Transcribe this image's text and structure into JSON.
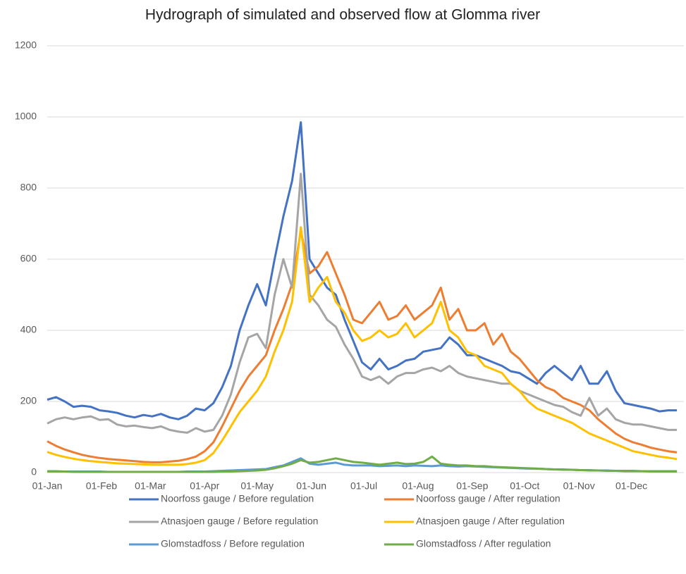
{
  "chart_data": {
    "type": "line",
    "title": "Hydrograph of simulated and observed flow at Glomma river",
    "x": [
      0,
      5,
      10,
      15,
      20,
      25,
      30,
      35,
      40,
      45,
      50,
      55,
      60,
      65,
      70,
      75,
      80,
      85,
      90,
      95,
      100,
      105,
      110,
      115,
      120,
      125,
      130,
      135,
      140,
      145,
      150,
      155,
      160,
      165,
      170,
      175,
      180,
      185,
      190,
      195,
      200,
      205,
      210,
      215,
      220,
      225,
      230,
      235,
      240,
      245,
      250,
      255,
      260,
      265,
      270,
      275,
      280,
      285,
      290,
      295,
      300,
      305,
      310,
      315,
      320,
      325,
      330,
      335,
      340,
      345,
      350,
      355,
      360
    ],
    "xlim": [
      0,
      364
    ],
    "xticks": [
      {
        "value": 0,
        "label": "01-Jan"
      },
      {
        "value": 31,
        "label": "01-Feb"
      },
      {
        "value": 59,
        "label": "01-Mar"
      },
      {
        "value": 90,
        "label": "01-Apr"
      },
      {
        "value": 120,
        "label": "01-May"
      },
      {
        "value": 151,
        "label": "01-Jun"
      },
      {
        "value": 181,
        "label": "01-Jul"
      },
      {
        "value": 212,
        "label": "01-Aug"
      },
      {
        "value": 243,
        "label": "01-Sep"
      },
      {
        "value": 273,
        "label": "01-Oct"
      },
      {
        "value": 304,
        "label": "01-Nov"
      },
      {
        "value": 334,
        "label": "01-Dec"
      }
    ],
    "ylim": [
      0,
      1200
    ],
    "yticks": [
      0,
      200,
      400,
      600,
      800,
      1000,
      1200
    ],
    "grid": true,
    "series": [
      {
        "name": "Noorfoss gauge / Before regulation",
        "color": "#4472c4",
        "values": [
          205,
          212,
          200,
          185,
          188,
          185,
          175,
          172,
          168,
          160,
          155,
          162,
          158,
          165,
          155,
          150,
          160,
          180,
          175,
          195,
          240,
          300,
          400,
          470,
          530,
          470,
          600,
          720,
          820,
          985,
          600,
          560,
          520,
          500,
          430,
          370,
          310,
          290,
          320,
          290,
          300,
          315,
          320,
          340,
          345,
          350,
          380,
          360,
          330,
          330,
          320,
          310,
          300,
          285,
          280,
          265,
          250,
          280,
          300,
          280,
          260,
          300,
          250,
          250,
          285,
          230,
          195,
          190,
          185,
          180,
          172,
          175,
          175
        ]
      },
      {
        "name": "Noorfoss gauge / After regulation",
        "color": "#ed7d31",
        "values": [
          88,
          75,
          65,
          57,
          50,
          45,
          41,
          38,
          36,
          34,
          32,
          30,
          29,
          29,
          31,
          33,
          38,
          45,
          60,
          85,
          130,
          180,
          230,
          270,
          300,
          330,
          400,
          460,
          530,
          680,
          560,
          580,
          620,
          560,
          500,
          430,
          420,
          450,
          480,
          430,
          440,
          470,
          430,
          450,
          470,
          520,
          430,
          460,
          400,
          400,
          420,
          360,
          390,
          340,
          320,
          290,
          260,
          240,
          230,
          210,
          200,
          190,
          175,
          150,
          130,
          110,
          95,
          85,
          78,
          70,
          65,
          60,
          57
        ]
      },
      {
        "name": "Atnasjoen gauge / Before regulation",
        "color": "#a5a5a5",
        "values": [
          138,
          150,
          155,
          150,
          155,
          158,
          148,
          150,
          135,
          130,
          132,
          128,
          125,
          130,
          120,
          115,
          112,
          125,
          115,
          120,
          160,
          220,
          310,
          380,
          390,
          350,
          500,
          600,
          520,
          840,
          500,
          470,
          430,
          410,
          360,
          320,
          270,
          260,
          270,
          250,
          270,
          280,
          280,
          290,
          295,
          285,
          300,
          280,
          270,
          265,
          260,
          255,
          250,
          250,
          230,
          220,
          210,
          200,
          190,
          185,
          170,
          160,
          210,
          160,
          180,
          150,
          140,
          135,
          135,
          130,
          125,
          120,
          120
        ]
      },
      {
        "name": "Atnasjoen gauge / After regulation",
        "color": "#ffc000",
        "values": [
          58,
          50,
          44,
          39,
          35,
          32,
          30,
          28,
          26,
          25,
          24,
          23,
          22,
          22,
          22,
          22,
          24,
          28,
          35,
          55,
          90,
          130,
          170,
          200,
          230,
          270,
          340,
          400,
          480,
          690,
          480,
          520,
          550,
          480,
          450,
          400,
          370,
          380,
          400,
          380,
          390,
          420,
          380,
          400,
          420,
          480,
          400,
          380,
          340,
          330,
          300,
          290,
          280,
          250,
          230,
          200,
          180,
          170,
          160,
          150,
          140,
          125,
          110,
          100,
          90,
          80,
          70,
          60,
          55,
          50,
          45,
          42,
          38
        ]
      },
      {
        "name": "Glomstadfoss / Before regulation",
        "color": "#5b9bd5",
        "values": [
          4,
          4,
          3,
          3,
          3,
          3,
          3,
          2,
          2,
          2,
          2,
          2,
          2,
          2,
          2,
          2,
          3,
          3,
          3,
          4,
          5,
          6,
          7,
          8,
          9,
          10,
          15,
          20,
          30,
          40,
          25,
          22,
          25,
          28,
          22,
          20,
          20,
          20,
          18,
          19,
          20,
          18,
          20,
          19,
          18,
          20,
          18,
          17,
          18,
          17,
          16,
          15,
          14,
          13,
          12,
          11,
          11,
          10,
          9,
          9,
          8,
          7,
          7,
          6,
          6,
          5,
          5,
          5,
          4,
          4,
          4,
          4,
          4
        ]
      },
      {
        "name": "Glomstadfoss / After regulation",
        "color": "#70ad47",
        "values": [
          3,
          3,
          3,
          2,
          2,
          2,
          2,
          2,
          2,
          2,
          2,
          2,
          2,
          2,
          2,
          2,
          2,
          2,
          2,
          2,
          3,
          3,
          4,
          5,
          6,
          8,
          12,
          18,
          25,
          35,
          28,
          30,
          35,
          40,
          35,
          30,
          28,
          25,
          22,
          25,
          28,
          24,
          25,
          30,
          45,
          25,
          22,
          20,
          20,
          18,
          18,
          16,
          15,
          14,
          13,
          12,
          11,
          10,
          9,
          8,
          8,
          7,
          6,
          6,
          5,
          5,
          4,
          4,
          4,
          3,
          3,
          3,
          3
        ]
      }
    ]
  }
}
